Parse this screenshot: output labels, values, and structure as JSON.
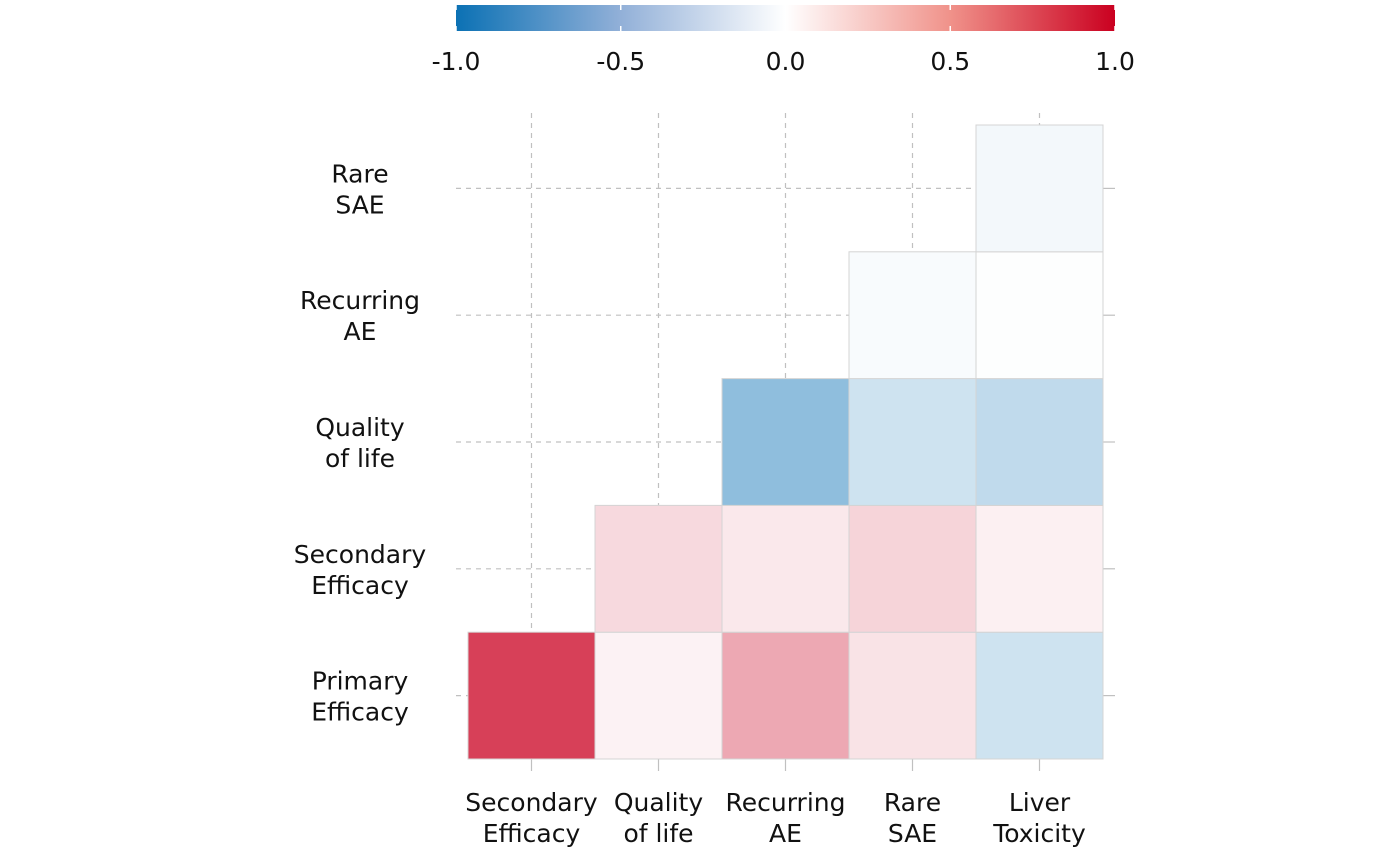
{
  "chart_data": {
    "type": "heatmap",
    "title": "",
    "xlabel": "",
    "ylabel": "",
    "x_labels": [
      [
        "Secondary",
        "Efficacy"
      ],
      [
        "Quality",
        "of life"
      ],
      [
        "Recurring",
        "AE"
      ],
      [
        "Rare",
        "SAE"
      ],
      [
        "Liver",
        "Toxicity"
      ]
    ],
    "y_labels": [
      [
        "Primary",
        "Efficacy"
      ],
      [
        "Secondary",
        "Efficacy"
      ],
      [
        "Quality",
        "of life"
      ],
      [
        "Recurring",
        "AE"
      ],
      [
        "Rare",
        "SAE"
      ]
    ],
    "cells": [
      {
        "x": 0,
        "y": 0,
        "value": 0.75
      },
      {
        "x": 1,
        "y": 0,
        "value": 0.05
      },
      {
        "x": 2,
        "y": 0,
        "value": 0.34
      },
      {
        "x": 3,
        "y": 0,
        "value": 0.11
      },
      {
        "x": 4,
        "y": 0,
        "value": -0.2
      },
      {
        "x": 1,
        "y": 1,
        "value": 0.15
      },
      {
        "x": 2,
        "y": 1,
        "value": 0.09
      },
      {
        "x": 3,
        "y": 1,
        "value": 0.17
      },
      {
        "x": 4,
        "y": 1,
        "value": 0.06
      },
      {
        "x": 2,
        "y": 2,
        "value": -0.46
      },
      {
        "x": 3,
        "y": 2,
        "value": -0.2
      },
      {
        "x": 4,
        "y": 2,
        "value": -0.26
      },
      {
        "x": 3,
        "y": 3,
        "value": -0.03
      },
      {
        "x": 4,
        "y": 3,
        "value": -0.01
      },
      {
        "x": 4,
        "y": 4,
        "value": -0.05
      }
    ],
    "colorbar": {
      "min": -1.0,
      "max": 1.0,
      "ticks": [
        -1.0,
        -0.5,
        0.0,
        0.5,
        1.0
      ],
      "tick_labels": [
        "-1.0",
        "-0.5",
        "0.0",
        "0.5",
        "1.0"
      ],
      "colors": {
        "low": "#0b71b4",
        "mid": "#ffffff",
        "high": "#ca0020"
      },
      "placement": "top"
    },
    "grid": true
  }
}
